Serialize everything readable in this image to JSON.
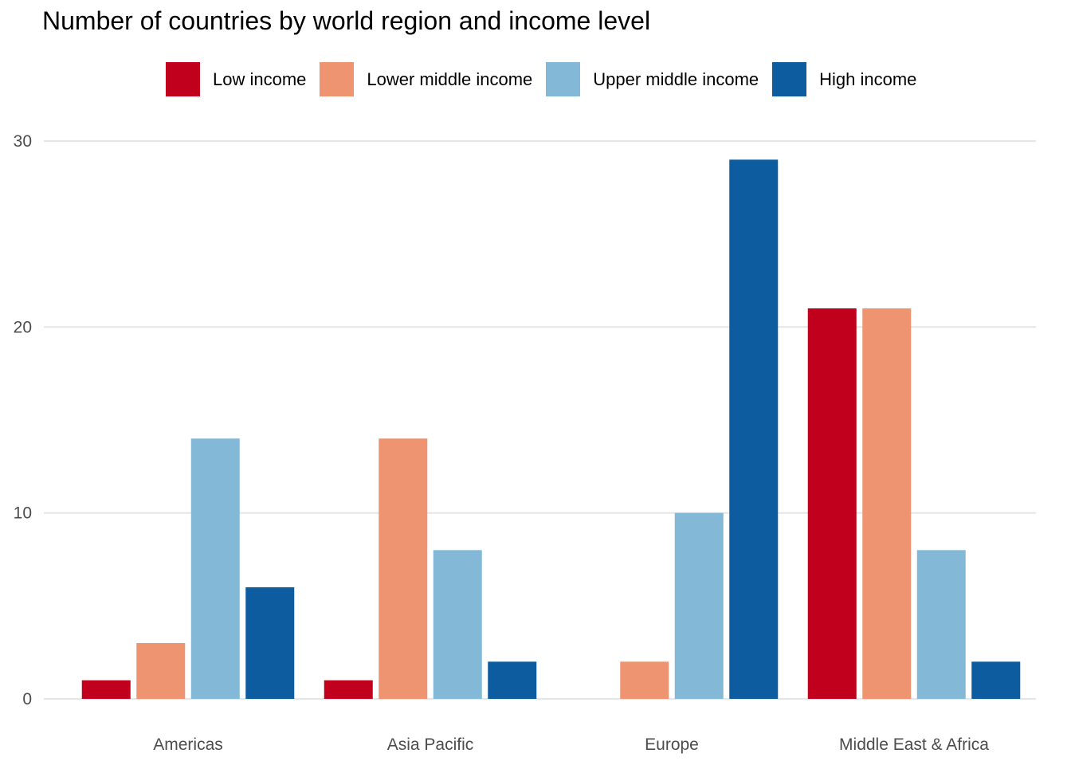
{
  "chart_data": {
    "type": "bar",
    "title": "Number of countries by world region and income level",
    "xlabel": "",
    "ylabel": "",
    "categories": [
      "Americas",
      "Asia Pacific",
      "Europe",
      "Middle East & Africa"
    ],
    "series": [
      {
        "name": "Low income",
        "color": "#c0001d",
        "values": [
          1,
          1,
          0,
          21
        ]
      },
      {
        "name": "Lower middle income",
        "color": "#ef9470",
        "values": [
          3,
          14,
          2,
          21
        ]
      },
      {
        "name": "Upper middle income",
        "color": "#83b8d6",
        "values": [
          14,
          8,
          10,
          8
        ]
      },
      {
        "name": "High income",
        "color": "#0e5ca0",
        "values": [
          6,
          2,
          29,
          2
        ]
      }
    ],
    "ylim": [
      0,
      30
    ],
    "yticks": [
      0,
      10,
      20,
      30
    ],
    "grid": true,
    "legend_position": "top"
  }
}
